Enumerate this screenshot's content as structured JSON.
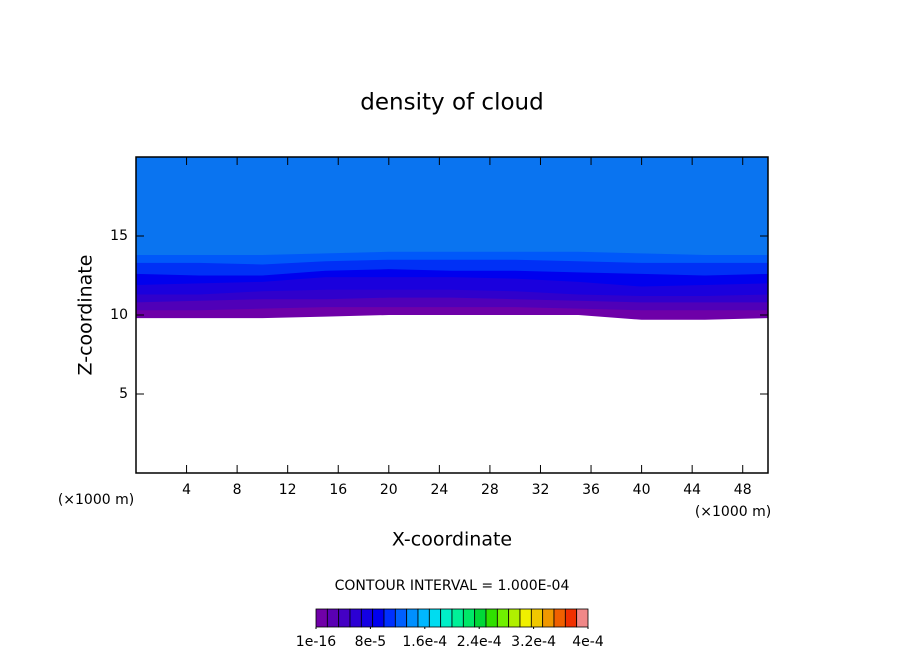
{
  "chart_data": {
    "type": "contour",
    "title": "density of cloud",
    "x_label": "X-coordinate",
    "y_label": "Z-coordinate",
    "x_unit": "(×1000 m)",
    "y_unit": "(×1000 m)",
    "xlim": [
      0,
      50
    ],
    "ylim": [
      0,
      20
    ],
    "xticks": [
      4,
      8,
      12,
      16,
      20,
      24,
      28,
      32,
      36,
      40,
      44,
      48
    ],
    "yticks": [
      5,
      10,
      15
    ],
    "x": [
      0,
      5,
      10,
      15,
      20,
      25,
      30,
      35,
      40,
      45,
      50
    ],
    "bands": [
      {
        "color": "#6e00a8",
        "lower": [
          9.8,
          9.8,
          9.8,
          9.9,
          10.0,
          10.0,
          10.0,
          10.0,
          9.7,
          9.7,
          9.8
        ]
      },
      {
        "color": "#5000b8",
        "lower": [
          10.3,
          10.3,
          10.4,
          10.5,
          10.5,
          10.5,
          10.5,
          10.4,
          10.3,
          10.3,
          10.3
        ]
      },
      {
        "color": "#3000cc",
        "lower": [
          10.8,
          10.9,
          11.0,
          11.0,
          11.1,
          11.1,
          11.0,
          10.9,
          10.8,
          10.8,
          10.8
        ]
      },
      {
        "color": "#1a00dd",
        "lower": [
          11.3,
          11.3,
          11.5,
          11.6,
          11.6,
          11.6,
          11.5,
          11.3,
          11.2,
          11.2,
          11.3
        ]
      },
      {
        "color": "#0000ee",
        "lower": [
          11.9,
          12.0,
          12.1,
          12.4,
          12.4,
          12.4,
          12.3,
          12.1,
          11.8,
          11.9,
          12.0
        ]
      },
      {
        "color": "#0030f6",
        "lower": [
          12.6,
          12.5,
          12.5,
          12.8,
          12.9,
          12.8,
          12.8,
          12.7,
          12.6,
          12.5,
          12.6
        ]
      },
      {
        "color": "#0058fa",
        "lower": [
          13.3,
          13.3,
          13.2,
          13.4,
          13.5,
          13.5,
          13.5,
          13.4,
          13.3,
          13.3,
          13.3
        ]
      },
      {
        "color": "#0a74f0",
        "lower": [
          13.8,
          13.8,
          13.8,
          13.9,
          14.0,
          14.0,
          14.0,
          14.0,
          13.9,
          13.8,
          13.8
        ]
      }
    ],
    "contour_interval": "CONTOUR INTERVAL = 1.000E-04",
    "colorbar": {
      "lim": [
        0,
        0.0004
      ],
      "colors": [
        "#7000a8",
        "#5a00b4",
        "#4400c4",
        "#2c00d4",
        "#1400e4",
        "#0000f0",
        "#0030ff",
        "#0060ff",
        "#0090ff",
        "#00b8ff",
        "#00dcf0",
        "#00f0c8",
        "#00f098",
        "#00e868",
        "#00d838",
        "#30e000",
        "#70f000",
        "#b0f000",
        "#f0f000",
        "#f0c800",
        "#f09800",
        "#f06000",
        "#f03000",
        "#f08888"
      ],
      "ticks": [
        {
          "value": 1e-16,
          "label": "1e-16"
        },
        {
          "value": 8e-05,
          "label": "8e-5"
        },
        {
          "value": 0.00016,
          "label": "1.6e-4"
        },
        {
          "value": 0.00024,
          "label": "2.4e-4"
        },
        {
          "value": 0.00032,
          "label": "3.2e-4"
        },
        {
          "value": 0.0004,
          "label": "4e-4"
        }
      ]
    }
  }
}
